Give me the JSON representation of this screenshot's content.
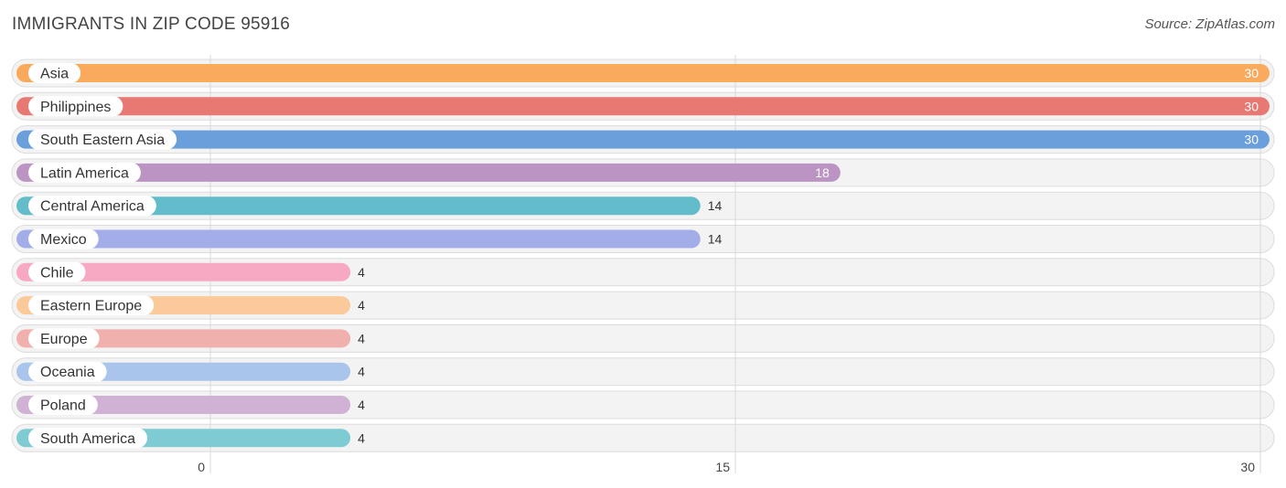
{
  "title": "IMMIGRANTS IN ZIP CODE 95916",
  "source": "Source: ZipAtlas.com",
  "chart_data": {
    "type": "bar",
    "orientation": "horizontal",
    "categories": [
      "Asia",
      "Philippines",
      "South Eastern Asia",
      "Latin America",
      "Central America",
      "Mexico",
      "Chile",
      "Eastern Europe",
      "Europe",
      "Oceania",
      "Poland",
      "South America"
    ],
    "values": [
      30,
      30,
      30,
      18,
      14,
      14,
      4,
      4,
      4,
      4,
      4,
      4
    ],
    "colors": [
      "#f9aa5c",
      "#e87872",
      "#6a9fdb",
      "#bc94c4",
      "#62bcc9",
      "#a3aee8",
      "#f7a8c2",
      "#fbc99a",
      "#f0b0ae",
      "#a9c5ec",
      "#cfb2d4",
      "#7ecbd4"
    ],
    "xlim": [
      0,
      30
    ],
    "xticks": [
      0,
      15,
      30
    ],
    "xlabel": "",
    "ylabel": "",
    "grid": true
  }
}
